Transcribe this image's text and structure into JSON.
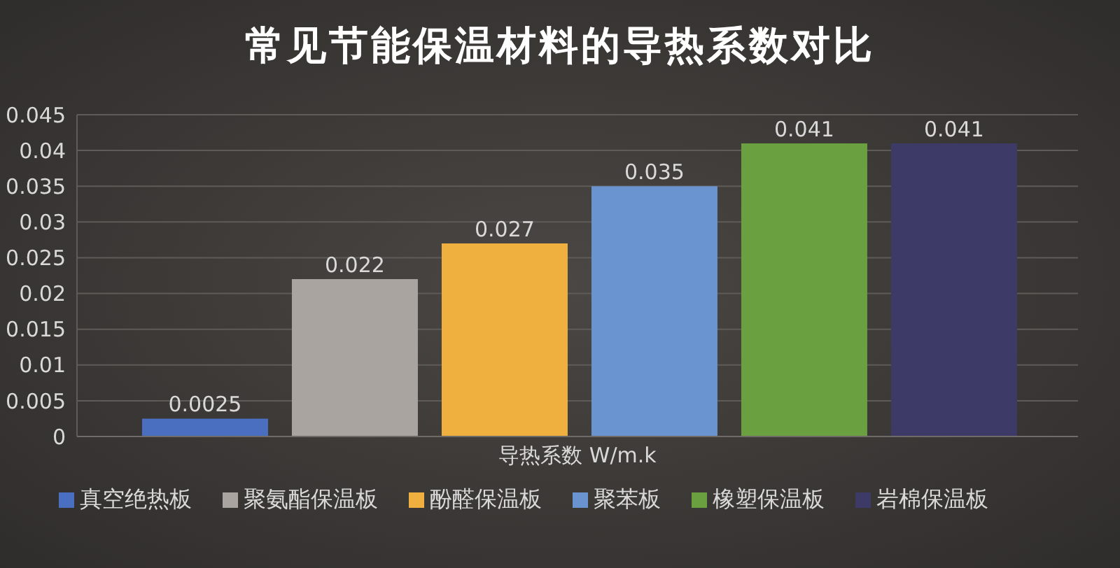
{
  "chart_data": {
    "type": "bar",
    "title": "常见节能保温材料的导热系数对比",
    "categories": [
      "导热系数 W/m.k"
    ],
    "series": [
      {
        "name": "真空绝热板",
        "color": "#4a6fc0",
        "values": [
          0.0025
        ]
      },
      {
        "name": "聚氨酯保温板",
        "color": "#a9a4a0",
        "values": [
          0.022
        ]
      },
      {
        "name": "酚醛保温板",
        "color": "#f0b040",
        "values": [
          0.027
        ]
      },
      {
        "name": "聚苯板",
        "color": "#6a94d0",
        "values": [
          0.035
        ]
      },
      {
        "name": "橡塑保温板",
        "color": "#6aa040",
        "values": [
          0.041
        ]
      },
      {
        "name": "岩棉保温板",
        "color": "#3e3a68",
        "values": [
          0.041
        ]
      }
    ],
    "ylim": [
      0,
      0.045
    ],
    "yticks": [
      0,
      0.005,
      0.01,
      0.015,
      0.02,
      0.025,
      0.03,
      0.035,
      0.04,
      0.045
    ],
    "grid": "y",
    "legend": "bottom",
    "data_labels": true
  }
}
